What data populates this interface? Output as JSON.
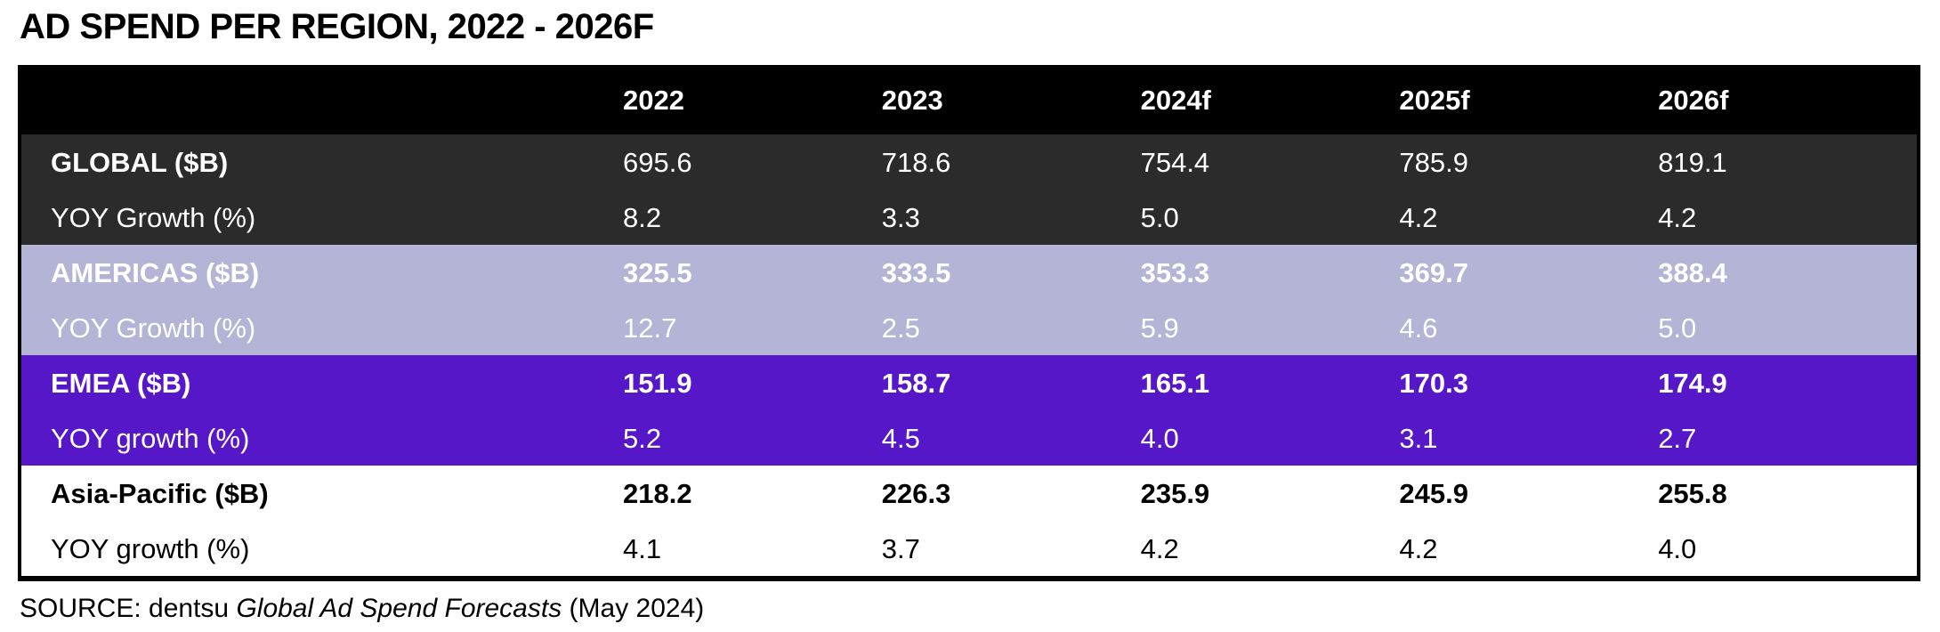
{
  "page": {
    "title": "AD SPEND PER REGION, 2022 - 2026F",
    "source_prefix": "SOURCE: dentsu ",
    "source_italic": "Global Ad Spend Forecasts",
    "source_suffix": " (May 2024)"
  },
  "colors": {
    "header_bg": "#000000",
    "header_text": "#ffffff",
    "global_section_bg": "#2b2b2b",
    "americas_section_bg": "#b3b4d6",
    "emea_section_bg": "#5617c9",
    "apac_section_bg": "#ffffff",
    "light_text": "#ffffff",
    "dark_text": "#000000"
  },
  "chart_data": {
    "type": "table",
    "title": "AD SPEND PER REGION, 2022 - 2026F",
    "columns": [
      "",
      "2022",
      "2023",
      "2024f",
      "2025f",
      "2026f"
    ],
    "rows": [
      {
        "group": "GLOBAL",
        "label": "GLOBAL ($B)",
        "values": [
          "695.6",
          "718.6",
          "754.4",
          "785.9",
          "819.1"
        ]
      },
      {
        "group": "GLOBAL",
        "label": "YOY Growth (%)",
        "values": [
          "8.2",
          "3.3",
          "5.0",
          "4.2",
          "4.2"
        ]
      },
      {
        "group": "AMERICAS",
        "label": "AMERICAS ($B)",
        "values": [
          "325.5",
          "333.5",
          "353.3",
          "369.7",
          "388.4"
        ]
      },
      {
        "group": "AMERICAS",
        "label": "YOY Growth (%)",
        "values": [
          "12.7",
          "2.5",
          "5.9",
          "4.6",
          "5.0"
        ]
      },
      {
        "group": "EMEA",
        "label": "EMEA ($B)",
        "values": [
          "151.9",
          "158.7",
          "165.1",
          "170.3",
          "174.9"
        ]
      },
      {
        "group": "EMEA",
        "label": "YOY growth (%)",
        "values": [
          "5.2",
          "4.5",
          "4.0",
          "3.1",
          "2.7"
        ]
      },
      {
        "group": "ASIA-PACIFIC",
        "label": "Asia-Pacific ($B)",
        "values": [
          "218.2",
          "226.3",
          "235.9",
          "245.9",
          "255.8"
        ]
      },
      {
        "group": "ASIA-PACIFIC",
        "label": "YOY growth (%)",
        "values": [
          "4.1",
          "3.7",
          "4.2",
          "4.2",
          "4.0"
        ]
      }
    ],
    "source": "SOURCE: dentsu Global Ad Spend Forecasts (May 2024)"
  }
}
